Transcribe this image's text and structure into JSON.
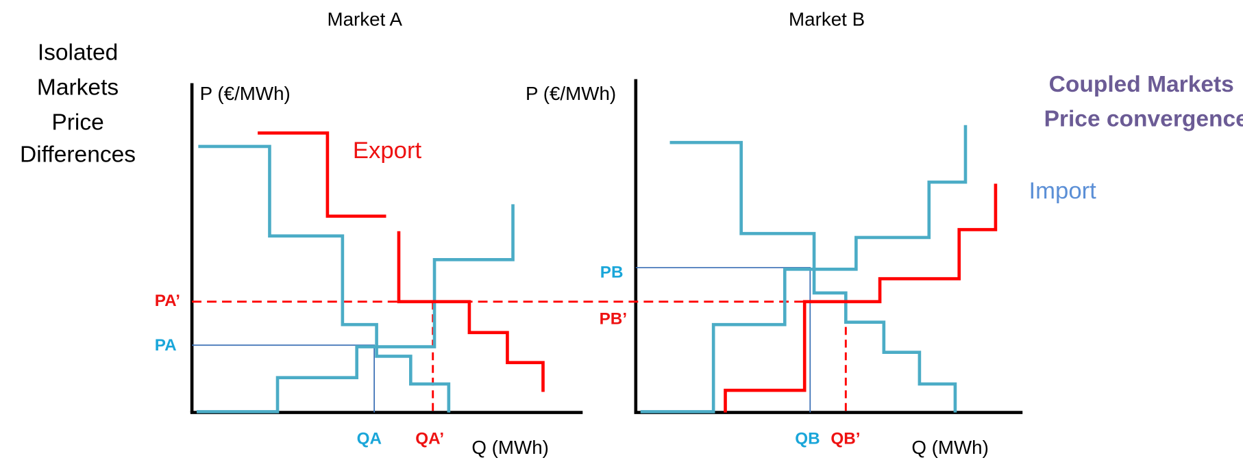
{
  "left_note": [
    "Isolated",
    "Markets",
    "Price",
    "Differences"
  ],
  "markets": [
    {
      "title": "Market A",
      "y_axis": "P (€/MWh)",
      "x_axis": "Q (MWh)",
      "flow": "Export",
      "price_coupled": "PA’",
      "price_isolated": "PA",
      "quantity_isolated": "QA",
      "quantity_coupled": "QA’"
    },
    {
      "title": "Market B",
      "y_axis": "P (€/MWh)",
      "x_axis": "Q (MWh)",
      "flow": "Import",
      "price_isolated": "PB",
      "price_coupled": "PB’",
      "quantity_isolated": "QB",
      "quantity_coupled": "QB’"
    }
  ],
  "right_note": [
    "Coupled Markets",
    "Price convergence"
  ]
}
